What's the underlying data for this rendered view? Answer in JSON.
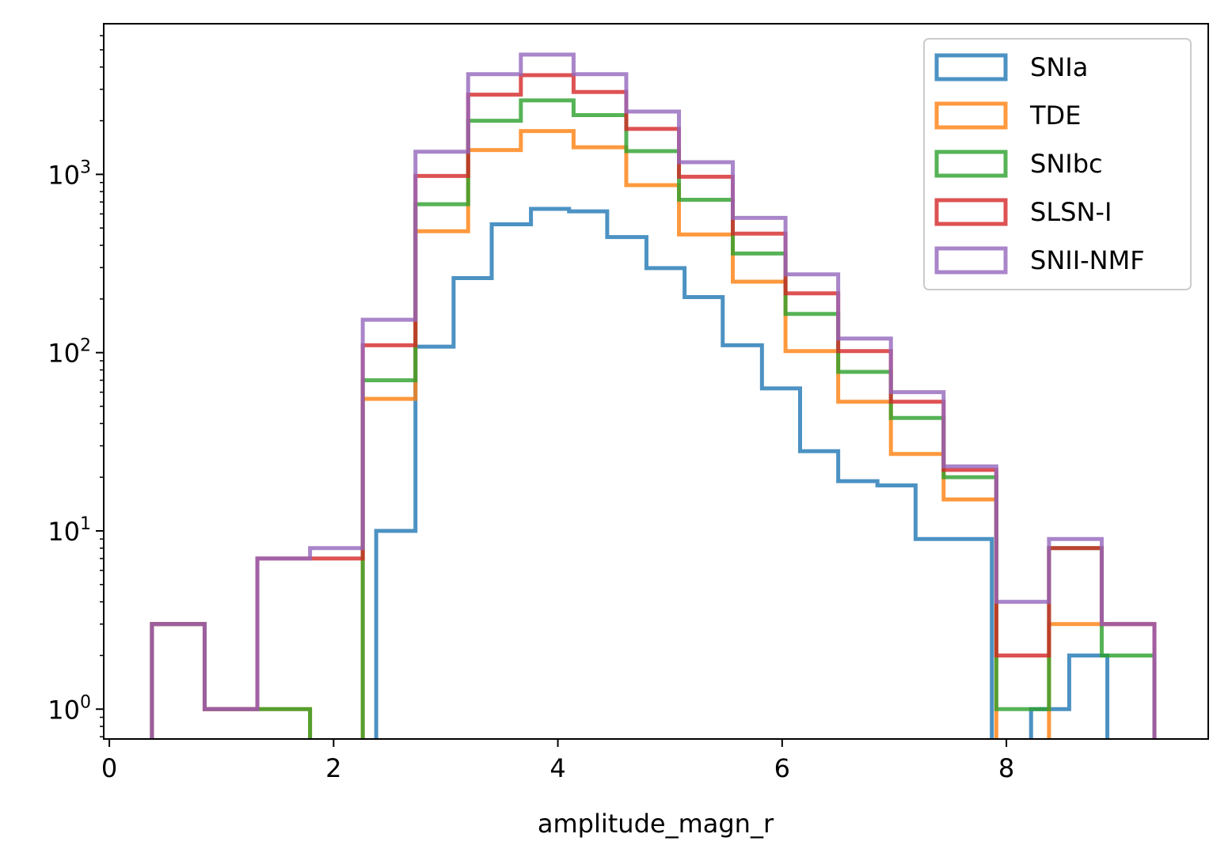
{
  "chart_data": {
    "type": "histogram-step",
    "xlabel": "amplitude_magn_r",
    "ylabel": "",
    "yscale": "log",
    "xlim": [
      -0.05,
      9.8
    ],
    "ylim": [
      0.68,
      7000
    ],
    "xticks": [
      0,
      2,
      4,
      6,
      8
    ],
    "yticks": [
      {
        "value": 1,
        "base": "10",
        "exp": "0"
      },
      {
        "value": 10,
        "base": "10",
        "exp": "1"
      },
      {
        "value": 100,
        "base": "10",
        "exp": "2"
      },
      {
        "value": 1000,
        "base": "10",
        "exp": "3"
      }
    ],
    "legend": {
      "location": "top-right"
    },
    "series": [
      {
        "name": "SNIa",
        "color": "#1f77b4",
        "bins": [
          [
            2.38,
            2.73,
            10
          ],
          [
            2.73,
            3.07,
            108
          ],
          [
            3.07,
            3.41,
            262
          ],
          [
            3.41,
            3.76,
            525
          ],
          [
            3.76,
            4.1,
            640
          ],
          [
            4.1,
            4.44,
            620
          ],
          [
            4.44,
            4.79,
            445
          ],
          [
            4.79,
            5.13,
            298
          ],
          [
            5.13,
            5.47,
            205
          ],
          [
            5.47,
            5.82,
            110
          ],
          [
            5.82,
            6.16,
            63
          ],
          [
            6.16,
            6.5,
            28
          ],
          [
            6.5,
            6.85,
            19
          ],
          [
            6.85,
            7.19,
            18
          ],
          [
            7.19,
            7.53,
            9
          ],
          [
            7.53,
            7.87,
            9
          ],
          [
            8.22,
            8.56,
            1
          ],
          [
            8.56,
            8.9,
            2
          ]
        ]
      },
      {
        "name": "TDE",
        "color": "#ff7f0e",
        "bins": [
          [
            0.38,
            0.85,
            3
          ],
          [
            0.85,
            1.32,
            1
          ],
          [
            1.32,
            1.79,
            1
          ],
          [
            2.26,
            2.73,
            55
          ],
          [
            2.73,
            3.2,
            480
          ],
          [
            3.2,
            3.67,
            1370
          ],
          [
            3.67,
            4.14,
            1750
          ],
          [
            4.14,
            4.61,
            1420
          ],
          [
            4.61,
            5.08,
            870
          ],
          [
            5.08,
            5.56,
            460
          ],
          [
            5.56,
            6.03,
            250
          ],
          [
            6.03,
            6.5,
            102
          ],
          [
            6.5,
            6.97,
            53
          ],
          [
            6.97,
            7.44,
            27
          ],
          [
            7.44,
            7.91,
            15
          ],
          [
            8.38,
            8.85,
            3
          ],
          [
            8.85,
            9.32,
            3
          ]
        ]
      },
      {
        "name": "SNIbc",
        "color": "#2ca02c",
        "bins": [
          [
            0.38,
            0.85,
            3
          ],
          [
            0.85,
            1.32,
            1
          ],
          [
            1.32,
            1.79,
            1
          ],
          [
            2.26,
            2.73,
            70
          ],
          [
            2.73,
            3.2,
            680
          ],
          [
            3.2,
            3.67,
            2000
          ],
          [
            3.67,
            4.14,
            2600
          ],
          [
            4.14,
            4.61,
            2150
          ],
          [
            4.61,
            5.08,
            1350
          ],
          [
            5.08,
            5.56,
            720
          ],
          [
            5.56,
            6.03,
            360
          ],
          [
            6.03,
            6.5,
            165
          ],
          [
            6.5,
            6.97,
            78
          ],
          [
            6.97,
            7.44,
            43
          ],
          [
            7.44,
            7.91,
            20
          ],
          [
            7.91,
            8.38,
            1
          ],
          [
            8.38,
            8.85,
            8
          ],
          [
            8.85,
            9.32,
            2
          ]
        ]
      },
      {
        "name": "SLSN-I",
        "color": "#d62728",
        "bins": [
          [
            0.38,
            0.85,
            3
          ],
          [
            0.85,
            1.32,
            1
          ],
          [
            1.32,
            1.79,
            7
          ],
          [
            1.79,
            2.26,
            7
          ],
          [
            2.26,
            2.73,
            110
          ],
          [
            2.73,
            3.2,
            980
          ],
          [
            3.2,
            3.67,
            2800
          ],
          [
            3.67,
            4.14,
            3600
          ],
          [
            4.14,
            4.61,
            2900
          ],
          [
            4.61,
            5.08,
            1800
          ],
          [
            5.08,
            5.56,
            970
          ],
          [
            5.56,
            6.03,
            465
          ],
          [
            6.03,
            6.5,
            215
          ],
          [
            6.5,
            6.97,
            102
          ],
          [
            6.97,
            7.44,
            53
          ],
          [
            7.44,
            7.91,
            22
          ],
          [
            7.91,
            8.38,
            2
          ],
          [
            8.38,
            8.85,
            8
          ],
          [
            8.85,
            9.32,
            3
          ]
        ]
      },
      {
        "name": "SNII-NMF",
        "color": "#9467bd",
        "bins": [
          [
            0.38,
            0.85,
            3
          ],
          [
            0.85,
            1.32,
            1
          ],
          [
            1.32,
            1.79,
            7
          ],
          [
            1.79,
            2.26,
            8
          ],
          [
            2.26,
            2.73,
            153
          ],
          [
            2.73,
            3.2,
            1340
          ],
          [
            3.2,
            3.67,
            3650
          ],
          [
            3.67,
            4.14,
            4700
          ],
          [
            4.14,
            4.61,
            3650
          ],
          [
            4.61,
            5.08,
            2250
          ],
          [
            5.08,
            5.56,
            1170
          ],
          [
            5.56,
            6.03,
            570
          ],
          [
            6.03,
            6.5,
            275
          ],
          [
            6.5,
            6.97,
            120
          ],
          [
            6.97,
            7.44,
            60
          ],
          [
            7.44,
            7.91,
            23
          ],
          [
            7.91,
            8.38,
            4
          ],
          [
            8.38,
            8.85,
            9
          ],
          [
            8.85,
            9.32,
            3
          ]
        ]
      }
    ]
  }
}
